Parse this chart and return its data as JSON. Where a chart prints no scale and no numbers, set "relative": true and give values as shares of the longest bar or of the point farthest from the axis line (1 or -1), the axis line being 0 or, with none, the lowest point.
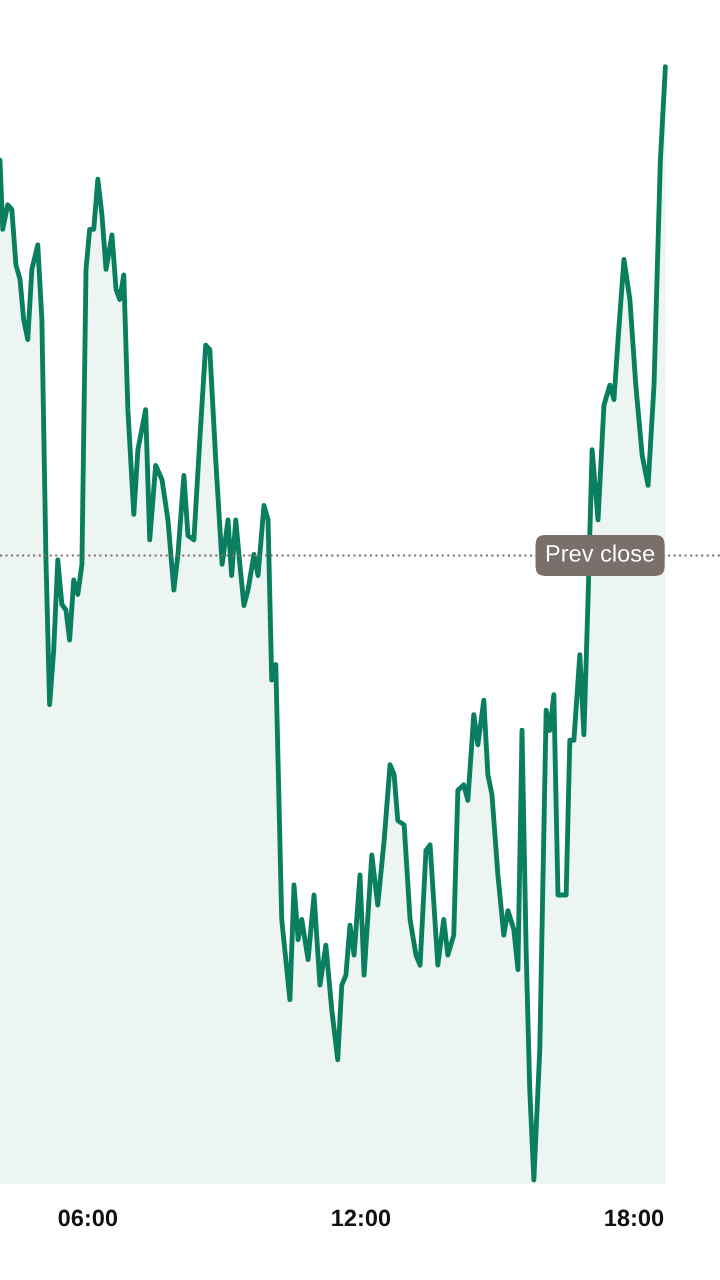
{
  "chart_data": {
    "type": "area",
    "relative": true,
    "grid": false,
    "legend": false,
    "marker": "none",
    "line_style": "solid",
    "xlim": [
      4.07,
      19.89
    ],
    "xticks": [
      {
        "value": 6,
        "label": "06:00"
      },
      {
        "value": 12,
        "label": "12:00"
      },
      {
        "value": 18,
        "label": "18:00"
      }
    ],
    "ref_lines": [
      {
        "axis": "y",
        "value": 0.561,
        "label": "Prev close",
        "color": "#7a706b",
        "line_style": "dotted"
      }
    ],
    "series": [
      {
        "color": "#0a7f5f",
        "x": [
          4.07,
          4.13,
          4.24,
          4.33,
          4.42,
          4.51,
          4.59,
          4.68,
          4.77,
          4.9,
          4.99,
          5.08,
          5.16,
          5.25,
          5.34,
          5.43,
          5.52,
          5.6,
          5.69,
          5.78,
          5.87,
          5.96,
          6.04,
          6.13,
          6.22,
          6.31,
          6.4,
          6.53,
          6.62,
          6.7,
          6.79,
          6.88,
          7.01,
          7.1,
          7.27,
          7.36,
          7.49,
          7.63,
          7.76,
          7.89,
          7.98,
          8.11,
          8.2,
          8.33,
          8.46,
          8.59,
          8.68,
          8.81,
          8.95,
          9.08,
          9.16,
          9.25,
          9.34,
          9.43,
          9.52,
          9.65,
          9.74,
          9.87,
          9.96,
          10.04,
          10.13,
          10.26,
          10.44,
          10.53,
          10.62,
          10.7,
          10.84,
          10.97,
          11.1,
          11.23,
          11.36,
          11.49,
          11.58,
          11.67,
          11.76,
          11.85,
          11.98,
          12.07,
          12.24,
          12.37,
          12.51,
          12.64,
          12.73,
          12.81,
          12.95,
          13.08,
          13.21,
          13.3,
          13.43,
          13.52,
          13.69,
          13.82,
          13.91,
          14.04,
          14.13,
          14.26,
          14.35,
          14.48,
          14.57,
          14.7,
          14.79,
          14.88,
          15.01,
          15.14,
          15.23,
          15.36,
          15.45,
          15.54,
          15.63,
          15.71,
          15.8,
          15.93,
          16.07,
          16.15,
          16.24,
          16.33,
          16.51,
          16.59,
          16.68,
          16.81,
          16.9,
          16.99,
          17.08,
          17.21,
          17.34,
          17.47,
          17.56,
          17.65,
          17.78,
          17.91,
          18.04,
          18.18,
          18.31,
          18.44,
          18.58,
          18.69
        ],
        "values": [
          0.916,
          0.854,
          0.876,
          0.872,
          0.822,
          0.809,
          0.773,
          0.755,
          0.818,
          0.84,
          0.773,
          0.557,
          0.427,
          0.476,
          0.557,
          0.517,
          0.512,
          0.485,
          0.539,
          0.526,
          0.553,
          0.818,
          0.854,
          0.854,
          0.899,
          0.867,
          0.818,
          0.849,
          0.8,
          0.791,
          0.813,
          0.692,
          0.598,
          0.656,
          0.692,
          0.575,
          0.642,
          0.629,
          0.593,
          0.53,
          0.562,
          0.633,
          0.579,
          0.575,
          0.665,
          0.75,
          0.746,
          0.647,
          0.553,
          0.593,
          0.543,
          0.593,
          0.553,
          0.516,
          0.53,
          0.562,
          0.543,
          0.606,
          0.593,
          0.449,
          0.463,
          0.234,
          0.162,
          0.265,
          0.216,
          0.234,
          0.198,
          0.256,
          0.175,
          0.211,
          0.153,
          0.108,
          0.175,
          0.184,
          0.229,
          0.202,
          0.274,
          0.184,
          0.292,
          0.247,
          0.305,
          0.373,
          0.364,
          0.323,
          0.319,
          0.234,
          0.202,
          0.193,
          0.296,
          0.301,
          0.193,
          0.234,
          0.202,
          0.22,
          0.35,
          0.355,
          0.341,
          0.418,
          0.391,
          0.431,
          0.364,
          0.346,
          0.274,
          0.22,
          0.242,
          0.225,
          0.189,
          0.404,
          0.207,
          0.081,
          0,
          0.117,
          0.422,
          0.404,
          0.436,
          0.256,
          0.256,
          0.395,
          0.395,
          0.472,
          0.4,
          0.521,
          0.656,
          0.593,
          0.696,
          0.714,
          0.701,
          0.755,
          0.827,
          0.791,
          0.714,
          0.651,
          0.624,
          0.714,
          0.916,
          1
        ]
      }
    ]
  }
}
